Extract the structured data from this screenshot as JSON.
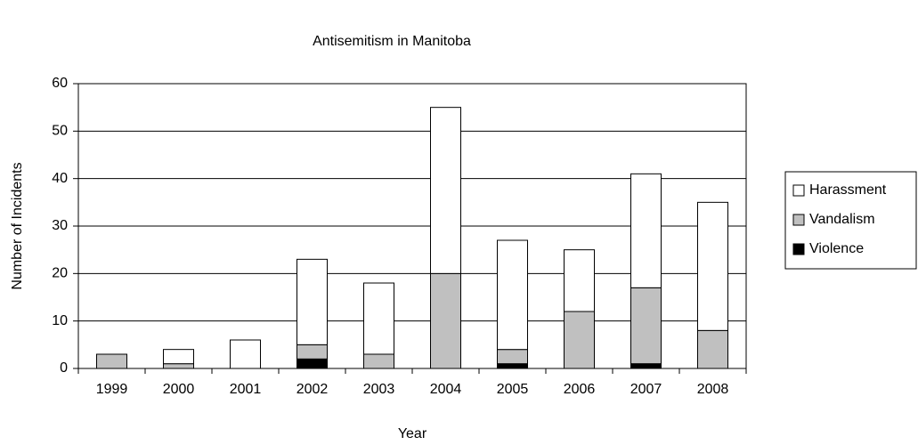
{
  "chart_data": {
    "type": "stacked_bar",
    "title": "Antisemitism in Manitoba",
    "x_label": "Year",
    "y_label": "Number of Incidents",
    "categories": [
      "1999",
      "2000",
      "2001",
      "2002",
      "2003",
      "2004",
      "2005",
      "2006",
      "2007",
      "2008"
    ],
    "series": [
      {
        "name": "Harassment",
        "color": "#ffffff",
        "values": [
          0,
          3,
          6,
          18,
          15,
          35,
          23,
          13,
          24,
          27
        ]
      },
      {
        "name": "Vandalism",
        "color": "#c0c0c0",
        "values": [
          3,
          1,
          0,
          3,
          3,
          20,
          3,
          12,
          16,
          8
        ]
      },
      {
        "name": "Violence",
        "color": "#000000",
        "values": [
          0,
          0,
          0,
          2,
          0,
          0,
          1,
          0,
          1,
          0
        ]
      }
    ],
    "ylim": [
      0,
      60
    ],
    "yticks": [
      0,
      10,
      20,
      30,
      40,
      50,
      60
    ],
    "grid": true,
    "legend": "right"
  }
}
